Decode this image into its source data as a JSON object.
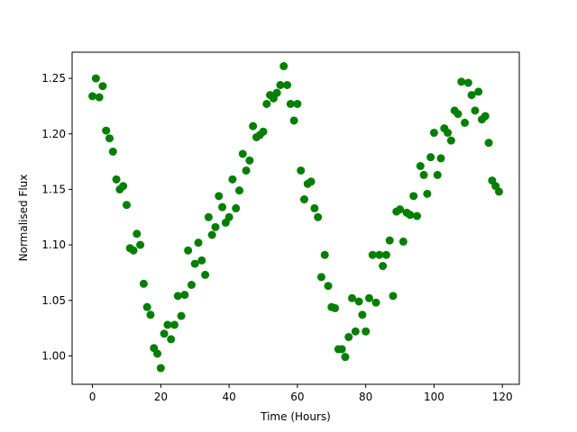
{
  "chart_data": {
    "type": "scatter",
    "x_label": "Time (Hours)",
    "y_label": "Normalised Flux",
    "x": [
      0,
      1,
      2,
      3,
      4,
      5,
      6,
      7,
      8,
      9,
      10,
      11,
      12,
      13,
      14,
      15,
      16,
      17,
      18,
      19,
      20,
      21,
      22,
      23,
      24,
      25,
      26,
      27,
      28,
      29,
      30,
      31,
      32,
      33,
      34,
      35,
      36,
      37,
      38,
      39,
      40,
      41,
      42,
      43,
      44,
      45,
      46,
      47,
      48,
      49,
      50,
      51,
      52,
      53,
      54,
      55,
      56,
      57,
      58,
      59,
      60,
      61,
      62,
      63,
      64,
      65,
      66,
      67,
      68,
      69,
      70,
      71,
      72,
      73,
      74,
      75,
      76,
      77,
      78,
      79,
      80,
      81,
      82,
      83,
      84,
      85,
      86,
      87,
      88,
      89,
      90,
      91,
      92,
      93,
      94,
      95,
      96,
      97,
      98,
      99,
      100,
      101,
      102,
      103,
      104,
      105,
      106,
      107,
      108,
      109,
      110,
      111,
      112,
      113,
      114,
      115,
      116,
      117,
      118,
      119
    ],
    "series": [
      {
        "color": "#008000",
        "values": [
          1.234,
          1.25,
          1.233,
          1.243,
          1.203,
          1.196,
          1.184,
          1.159,
          1.15,
          1.153,
          1.136,
          1.097,
          1.095,
          1.11,
          1.1,
          1.065,
          1.044,
          1.037,
          1.007,
          1.002,
          0.989,
          1.02,
          1.028,
          1.015,
          1.028,
          1.054,
          1.036,
          1.055,
          1.095,
          1.064,
          1.083,
          1.102,
          1.086,
          1.073,
          1.125,
          1.109,
          1.116,
          1.144,
          1.134,
          1.12,
          1.125,
          1.159,
          1.133,
          1.149,
          1.182,
          1.167,
          1.176,
          1.207,
          1.197,
          1.199,
          1.202,
          1.227,
          1.235,
          1.232,
          1.237,
          1.244,
          1.261,
          1.244,
          1.227,
          1.212,
          1.227,
          1.167,
          1.141,
          1.155,
          1.157,
          1.133,
          1.125,
          1.071,
          1.091,
          1.063,
          1.044,
          1.043,
          1.006,
          1.006,
          0.999,
          1.017,
          1.052,
          1.022,
          1.049,
          1.037,
          1.022,
          1.052,
          1.091,
          1.048,
          1.091,
          1.081,
          1.091,
          1.104,
          1.054,
          1.13,
          1.132,
          1.103,
          1.129,
          1.127,
          1.144,
          1.126,
          1.171,
          1.163,
          1.146,
          1.179,
          1.201,
          1.163,
          1.178,
          1.205,
          1.201,
          1.194,
          1.221,
          1.218,
          1.247,
          1.21,
          1.246,
          1.235,
          1.221,
          1.238,
          1.213,
          1.216,
          1.192,
          1.158,
          1.153,
          1.148
        ]
      }
    ],
    "xlim": [
      -5.95,
      124.95
    ],
    "ylim": [
      0.9744,
      1.2736
    ],
    "xticks": [
      0,
      20,
      40,
      60,
      80,
      100,
      120
    ],
    "yticks": [
      {
        "value": 1.0,
        "label": "1.00"
      },
      {
        "value": 1.05,
        "label": "1.05"
      },
      {
        "value": 1.1,
        "label": "1.10"
      },
      {
        "value": 1.15,
        "label": "1.15"
      },
      {
        "value": 1.2,
        "label": "1.20"
      },
      {
        "value": 1.25,
        "label": "1.25"
      }
    ]
  }
}
